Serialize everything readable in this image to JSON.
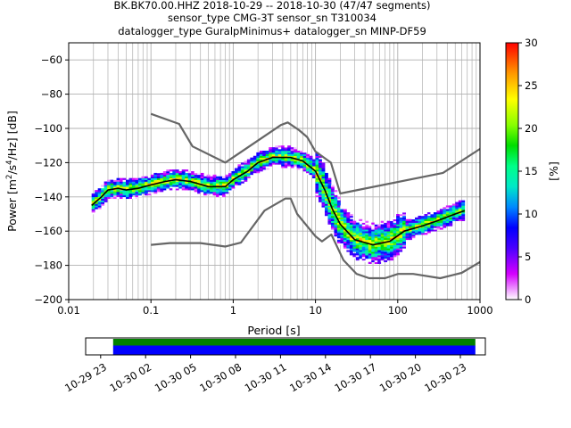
{
  "title": {
    "line1": "BK.BK70.00.HHZ   2018-10-29 -- 2018-10-30  (47/47 segments)",
    "line2": "sensor_type CMG-3T sensor_sn T310034",
    "line3": "datalogger_type GuralpMinimus+ datalogger_sn MINP-DF59"
  },
  "chart_data": [
    {
      "type": "heatmap",
      "title": "BK.BK70.00.HHZ   2018-10-29 -- 2018-10-30  (47/47 segments)",
      "xlabel": "Period [s]",
      "ylabel": "Power [m2/s4/Hz] [dB]",
      "xscale": "log",
      "xlim": [
        0.01,
        1000
      ],
      "ylim": [
        -200,
        -50
      ],
      "x_ticks": [
        0.01,
        0.1,
        1,
        10,
        100,
        1000
      ],
      "x_tick_labels": [
        "0.01",
        "0.1",
        "1",
        "10",
        "100",
        "1000"
      ],
      "y_ticks": [
        -200,
        -180,
        -160,
        -140,
        -120,
        -100,
        -80,
        -60
      ],
      "y_tick_labels": [
        "−200",
        "−180",
        "−160",
        "−140",
        "−120",
        "−100",
        "−80",
        "−60"
      ],
      "grid": true,
      "colorbar": {
        "label": "[%]",
        "range": [
          0,
          30
        ],
        "ticks": [
          0,
          5,
          10,
          15,
          20,
          25,
          30
        ],
        "tick_labels": [
          "0",
          "5",
          "10",
          "15",
          "20",
          "25",
          "30"
        ]
      },
      "series": [
        {
          "role": "mode",
          "color": "#000000",
          "points": [
            [
              0.019,
              -145
            ],
            [
              0.025,
              -140
            ],
            [
              0.03,
              -136
            ],
            [
              0.04,
              -135
            ],
            [
              0.05,
              -136
            ],
            [
              0.07,
              -135
            ],
            [
              0.1,
              -133
            ],
            [
              0.15,
              -131
            ],
            [
              0.2,
              -130
            ],
            [
              0.3,
              -131
            ],
            [
              0.5,
              -134
            ],
            [
              0.8,
              -134
            ],
            [
              1.0,
              -130
            ],
            [
              1.5,
              -125
            ],
            [
              2.0,
              -120
            ],
            [
              3.0,
              -117
            ],
            [
              5.0,
              -117
            ],
            [
              7.0,
              -119
            ],
            [
              10,
              -125
            ],
            [
              13,
              -136
            ],
            [
              16,
              -147
            ],
            [
              20,
              -156
            ],
            [
              30,
              -165
            ],
            [
              50,
              -168
            ],
            [
              80,
              -166
            ],
            [
              120,
              -160
            ],
            [
              200,
              -157
            ],
            [
              300,
              -154
            ],
            [
              500,
              -150
            ],
            [
              650,
              -148
            ]
          ]
        },
        {
          "role": "high noise model",
          "color": "#666666",
          "points": [
            [
              0.1,
              -91.5
            ],
            [
              0.22,
              -97.4
            ],
            [
              0.32,
              -110.5
            ],
            [
              0.8,
              -120
            ],
            [
              3.8,
              -98
            ],
            [
              4.6,
              -96.5
            ],
            [
              6.3,
              -101
            ],
            [
              7.9,
              -105
            ],
            [
              10,
              -113.5
            ],
            [
              15.4,
              -120
            ],
            [
              20,
              -138
            ],
            [
              354.8,
              -126
            ],
            [
              1000,
              -112
            ]
          ]
        },
        {
          "role": "low noise model",
          "color": "#666666",
          "points": [
            [
              0.1,
              -168
            ],
            [
              0.17,
              -167
            ],
            [
              0.4,
              -167
            ],
            [
              0.8,
              -169
            ],
            [
              1.24,
              -166.7
            ],
            [
              2.4,
              -148
            ],
            [
              4.3,
              -141
            ],
            [
              5,
              -141
            ],
            [
              6,
              -150
            ],
            [
              10,
              -163
            ],
            [
              12,
              -166
            ],
            [
              15.6,
              -162
            ],
            [
              21.9,
              -177
            ],
            [
              31.6,
              -185
            ],
            [
              45,
              -187.5
            ],
            [
              70,
              -187.5
            ],
            [
              101,
              -185
            ],
            [
              154,
              -185
            ],
            [
              328,
              -187.5
            ],
            [
              600,
              -184.4
            ],
            [
              1000,
              -178
            ]
          ]
        }
      ]
    },
    {
      "type": "bar",
      "name": "data coverage",
      "x_tick_labels": [
        "10-29 23",
        "10-30 02",
        "10-30 05",
        "10-30 08",
        "10-30 11",
        "10-30 14",
        "10-30 17",
        "10-30 20",
        "10-30 23"
      ],
      "coverage_start": "10-29 23:50",
      "coverage_end": "10-31 00:00",
      "axis_start": "10-29 22:00",
      "axis_end": "10-31 00:40",
      "colors": [
        "#008000",
        "#0000ff"
      ]
    }
  ]
}
